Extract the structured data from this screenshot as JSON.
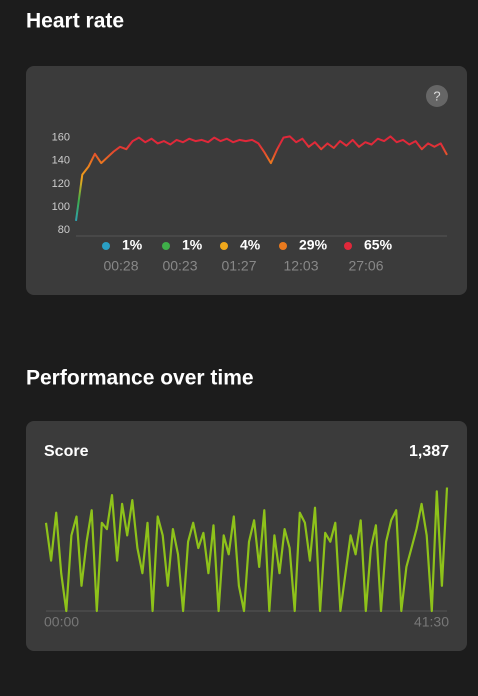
{
  "heart_rate": {
    "title": "Heart rate",
    "help": "?",
    "chart": {
      "type": "line",
      "ylim": [
        75,
        170
      ],
      "yticks": [
        80,
        100,
        120,
        140,
        160
      ],
      "values": [
        88,
        128,
        135,
        146,
        138,
        143,
        148,
        152,
        150,
        157,
        160,
        156,
        159,
        155,
        157,
        154,
        158,
        156,
        159,
        157,
        158,
        156,
        160,
        157,
        159,
        156,
        158,
        157,
        158,
        155,
        147,
        138,
        150,
        160,
        161,
        156,
        159,
        152,
        156,
        150,
        155,
        151,
        157,
        153,
        158,
        152,
        156,
        154,
        159,
        157,
        161,
        156,
        158,
        154,
        157,
        150,
        155,
        152,
        155,
        145
      ],
      "zones": [
        {
          "color": "#2a9fc4",
          "label": "1%",
          "time": "00:28"
        },
        {
          "color": "#3fae49",
          "label": "1%",
          "time": "00:23"
        },
        {
          "color": "#f0a81c",
          "label": "4%",
          "time": "01:27"
        },
        {
          "color": "#ea7a1e",
          "label": "29%",
          "time": "12:03"
        },
        {
          "color": "#e0283a",
          "label": "65%",
          "time": "27:06"
        }
      ]
    }
  },
  "performance": {
    "title": "Performance over time",
    "label": "Score",
    "score": "1,387",
    "chart": {
      "type": "line",
      "color": "#8ec21a",
      "ylim": [
        0,
        100
      ],
      "x_start": "00:00",
      "x_end": "41:30",
      "values": [
        70,
        40,
        78,
        30,
        0,
        60,
        75,
        20,
        55,
        80,
        0,
        70,
        65,
        92,
        40,
        85,
        60,
        88,
        50,
        30,
        70,
        0,
        75,
        60,
        20,
        65,
        45,
        0,
        55,
        70,
        50,
        62,
        30,
        68,
        0,
        60,
        45,
        75,
        20,
        0,
        55,
        72,
        35,
        80,
        0,
        60,
        30,
        65,
        50,
        0,
        78,
        70,
        40,
        82,
        0,
        62,
        55,
        70,
        0,
        30,
        60,
        45,
        72,
        0,
        50,
        68,
        0,
        55,
        72,
        80,
        0,
        35,
        50,
        65,
        85,
        60,
        0,
        95,
        20,
        98
      ]
    }
  }
}
